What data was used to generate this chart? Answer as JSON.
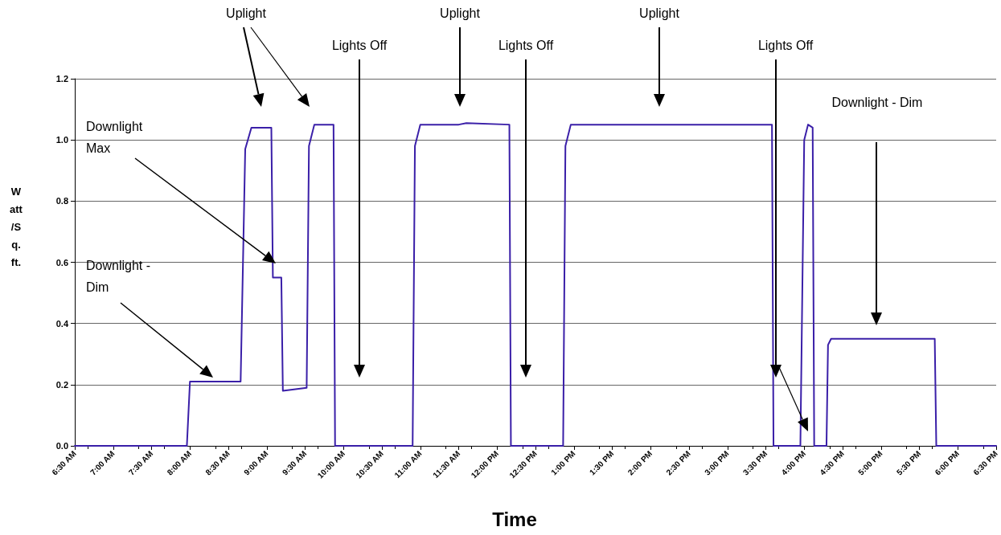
{
  "chart_data": {
    "type": "line",
    "xlabel": "Time",
    "ylabel": "Watt/Sq. ft.",
    "x": [
      6.5,
      7.96,
      8.0,
      8.3,
      8.66,
      8.72,
      8.8,
      9.06,
      9.08,
      9.19,
      9.21,
      9.52,
      9.55,
      9.62,
      9.87,
      9.89,
      10.9,
      10.93,
      11.0,
      11.5,
      11.6,
      12.16,
      12.18,
      12.86,
      12.89,
      12.96,
      15.58,
      15.6,
      15.95,
      16.0,
      16.05,
      16.11,
      16.13,
      16.29,
      16.31,
      16.35,
      17.7,
      17.72,
      18.5
    ],
    "series": [
      {
        "color": "#3a1fa8",
        "values": [
          0,
          0,
          0.21,
          0.21,
          0.21,
          0.97,
          1.04,
          1.04,
          0.55,
          0.55,
          0.18,
          0.19,
          0.98,
          1.05,
          1.05,
          0,
          0,
          0.98,
          1.05,
          1.05,
          1.055,
          1.05,
          0,
          0,
          0.98,
          1.05,
          1.05,
          0,
          0,
          1.0,
          1.05,
          1.04,
          0,
          0,
          0.33,
          0.35,
          0.35,
          0,
          0
        ]
      }
    ],
    "xlim": [
      6.5,
      18.5
    ],
    "xticks": [
      {
        "value": 6.5,
        "label": "6:30 AM"
      },
      {
        "value": 7,
        "label": "7:00 AM"
      },
      {
        "value": 7.5,
        "label": "7:30 AM"
      },
      {
        "value": 8,
        "label": "8:00 AM"
      },
      {
        "value": 8.5,
        "label": "8:30 AM"
      },
      {
        "value": 9,
        "label": "9:00 AM"
      },
      {
        "value": 9.5,
        "label": "9:30 AM"
      },
      {
        "value": 10,
        "label": "10:00 AM"
      },
      {
        "value": 10.5,
        "label": "10:30 AM"
      },
      {
        "value": 11,
        "label": "11:00 AM"
      },
      {
        "value": 11.5,
        "label": "11:30 AM"
      },
      {
        "value": 12,
        "label": "12:00 PM"
      },
      {
        "value": 12.5,
        "label": "12:30 PM"
      },
      {
        "value": 13,
        "label": "1:00 PM"
      },
      {
        "value": 13.5,
        "label": "1:30 PM"
      },
      {
        "value": 14,
        "label": "2:00 PM"
      },
      {
        "value": 14.5,
        "label": "2:30 PM"
      },
      {
        "value": 15,
        "label": "3:00 PM"
      },
      {
        "value": 15.5,
        "label": "3:30 PM"
      },
      {
        "value": 16,
        "label": "4:00 PM"
      },
      {
        "value": 16.5,
        "label": "4:30 PM"
      },
      {
        "value": 17,
        "label": "5:00 PM"
      },
      {
        "value": 17.5,
        "label": "5:30 PM"
      },
      {
        "value": 18,
        "label": "6:00 PM"
      },
      {
        "value": 18.5,
        "label": "6:30 PM"
      }
    ],
    "ylim": [
      0,
      1.2
    ],
    "yticks": [
      {
        "value": 0,
        "label": "0.0"
      },
      {
        "value": 0.2,
        "label": "0.2"
      },
      {
        "value": 0.4,
        "label": "0.4"
      },
      {
        "value": 0.6,
        "label": "0.6"
      },
      {
        "value": 0.8,
        "label": "0.8"
      },
      {
        "value": 1,
        "label": "1.0"
      },
      {
        "value": 1.2,
        "label": "1.2"
      }
    ],
    "grid": "y",
    "marker": "none",
    "line_style": "solid",
    "annotations": [
      "Uplight",
      "Lights Off",
      "Uplight",
      "Lights Off",
      "Uplight",
      "Lights Off",
      "Downlight - Dim",
      "Downlight Max",
      "Downlight - Dim"
    ]
  }
}
